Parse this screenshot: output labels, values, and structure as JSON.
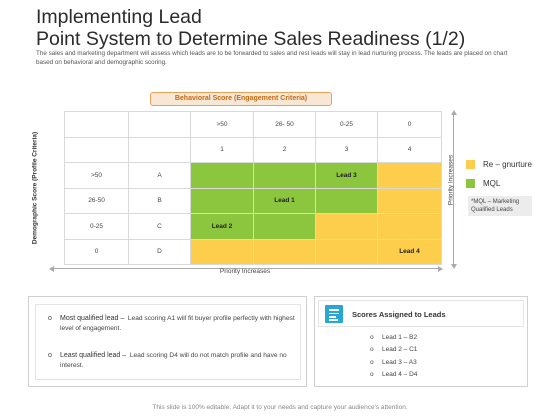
{
  "header": {
    "title_line1": "Implementing Lead",
    "title_line2": "Point System to Determine Sales Readiness (1/2)",
    "subtitle": "The sales and marketing department will assess which leads are to be forwarded to sales and rest leads will stay in lead nurturing process. The leads are placed on chart based on behavioral and demographic scoring."
  },
  "matrix": {
    "badge": "Behavioral Score (Engagement Criteria)",
    "y_axis_label": "Demographic Score (Profile Criteria)",
    "x_axis_label": "Priority Increases",
    "y2_axis_label": "Priority Increases",
    "col_ranges": [
      ">50",
      "26- 50",
      "0-25",
      "0"
    ],
    "col_numbers": [
      "1",
      "2",
      "3",
      "4"
    ],
    "rows": [
      {
        "range": ">50",
        "letter": "A",
        "cells": [
          {
            "color": "green",
            "text": ""
          },
          {
            "color": "green",
            "text": ""
          },
          {
            "color": "green",
            "text": "Lead 3"
          },
          {
            "color": "yellow",
            "text": ""
          }
        ]
      },
      {
        "range": "26-50",
        "letter": "B",
        "cells": [
          {
            "color": "green",
            "text": ""
          },
          {
            "color": "green",
            "text": "Lead 1"
          },
          {
            "color": "green",
            "text": ""
          },
          {
            "color": "yellow",
            "text": ""
          }
        ]
      },
      {
        "range": "0-25",
        "letter": "C",
        "cells": [
          {
            "color": "green",
            "text": "Lead 2"
          },
          {
            "color": "green",
            "text": ""
          },
          {
            "color": "yellow",
            "text": ""
          },
          {
            "color": "yellow",
            "text": ""
          }
        ]
      },
      {
        "range": "0",
        "letter": "D",
        "cells": [
          {
            "color": "yellow",
            "text": ""
          },
          {
            "color": "yellow",
            "text": ""
          },
          {
            "color": "yellow",
            "text": ""
          },
          {
            "color": "yellow",
            "text": "Lead 4"
          }
        ]
      }
    ]
  },
  "legend": {
    "items": [
      {
        "label": "Re – gnurture",
        "color": "#fdce4b"
      },
      {
        "label": "MQL",
        "color": "#8cc63e"
      }
    ],
    "note": "*MQL – Marketing Qualified Leads"
  },
  "notes": {
    "items": [
      {
        "label": "Most qualified lead –",
        "text": "Lead scoring A1 will fit buyer profile perfectly with highest level of engagement."
      },
      {
        "label": "Least qualified lead –",
        "text": "Lead scoring D4 will do not match profile and have no interest."
      }
    ]
  },
  "scores": {
    "title": "Scores Assigned to Leads",
    "icon": "document-icon",
    "items": [
      "Lead 1 – B2",
      "Lead 2 – C1",
      "Lead 3 – A3",
      "Lead 4 – D4"
    ]
  },
  "footer": "This slide is 100% editable. Adapt it to your needs and capture your audience's attention.",
  "colors": {
    "green": "#8cc63e",
    "yellow": "#fdce4b",
    "accent": "#e3a35c"
  }
}
